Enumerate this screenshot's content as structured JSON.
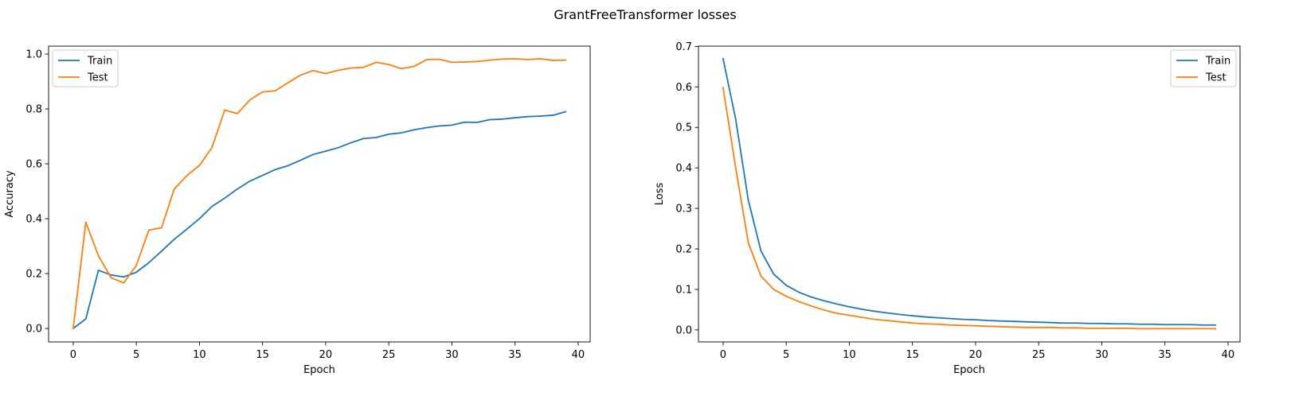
{
  "figure": {
    "title": "GrantFreeTransformer losses"
  },
  "series_colors": {
    "Train": "#1f77b4",
    "Test": "#ff7f0e"
  },
  "chart_data": [
    {
      "type": "line",
      "title": "",
      "xlabel": "Epoch",
      "ylabel": "Accuracy",
      "xlim": [
        -1.95,
        40.95
      ],
      "ylim": [
        -0.049,
        1.029
      ],
      "xticks": [
        0,
        5,
        10,
        15,
        20,
        25,
        30,
        35,
        40
      ],
      "yticks": [
        0.0,
        0.2,
        0.4,
        0.6,
        0.8,
        1.0
      ],
      "ytick_labels": [
        "0.0",
        "0.2",
        "0.4",
        "0.6",
        "0.8",
        "1.0"
      ],
      "grid": false,
      "legend_position": "upper-left",
      "x": [
        0,
        1,
        2,
        3,
        4,
        5,
        6,
        7,
        8,
        9,
        10,
        11,
        12,
        13,
        14,
        15,
        16,
        17,
        18,
        19,
        20,
        21,
        22,
        23,
        24,
        25,
        26,
        27,
        28,
        29,
        30,
        31,
        32,
        33,
        34,
        35,
        36,
        37,
        38,
        39
      ],
      "series": [
        {
          "name": "Train",
          "color": "#1f77b4",
          "values": [
            0.0,
            0.035,
            0.212,
            0.195,
            0.188,
            0.205,
            0.24,
            0.282,
            0.325,
            0.362,
            0.4,
            0.445,
            0.475,
            0.508,
            0.537,
            0.558,
            0.579,
            0.593,
            0.613,
            0.634,
            0.646,
            0.659,
            0.677,
            0.692,
            0.696,
            0.708,
            0.713,
            0.724,
            0.732,
            0.738,
            0.741,
            0.752,
            0.751,
            0.761,
            0.763,
            0.768,
            0.772,
            0.774,
            0.777,
            0.79
          ]
        },
        {
          "name": "Test",
          "color": "#ff7f0e",
          "values": [
            0.0,
            0.387,
            0.265,
            0.185,
            0.166,
            0.23,
            0.359,
            0.367,
            0.508,
            0.557,
            0.594,
            0.66,
            0.796,
            0.783,
            0.833,
            0.862,
            0.866,
            0.895,
            0.923,
            0.94,
            0.929,
            0.941,
            0.949,
            0.952,
            0.97,
            0.962,
            0.947,
            0.955,
            0.98,
            0.981,
            0.97,
            0.971,
            0.973,
            0.978,
            0.982,
            0.983,
            0.98,
            0.983,
            0.977,
            0.978
          ]
        }
      ]
    },
    {
      "type": "line",
      "title": "",
      "xlabel": "Epoch",
      "ylabel": "Loss",
      "xlim": [
        -1.95,
        40.95
      ],
      "ylim": [
        -0.0297,
        0.7007
      ],
      "xticks": [
        0,
        5,
        10,
        15,
        20,
        25,
        30,
        35,
        40
      ],
      "yticks": [
        0.0,
        0.1,
        0.2,
        0.3,
        0.4,
        0.5,
        0.6,
        0.7
      ],
      "ytick_labels": [
        "0.0",
        "0.1",
        "0.2",
        "0.3",
        "0.4",
        "0.5",
        "0.6",
        "0.7"
      ],
      "grid": false,
      "legend_position": "upper-right",
      "x": [
        0,
        1,
        2,
        3,
        4,
        5,
        6,
        7,
        8,
        9,
        10,
        11,
        12,
        13,
        14,
        15,
        16,
        17,
        18,
        19,
        20,
        21,
        22,
        23,
        24,
        25,
        26,
        27,
        28,
        29,
        30,
        31,
        32,
        33,
        34,
        35,
        36,
        37,
        38,
        39
      ],
      "series": [
        {
          "name": "Train",
          "color": "#1f77b4",
          "values": [
            0.67,
            0.52,
            0.32,
            0.195,
            0.138,
            0.11,
            0.093,
            0.081,
            0.072,
            0.064,
            0.057,
            0.051,
            0.046,
            0.042,
            0.038,
            0.035,
            0.032,
            0.03,
            0.028,
            0.026,
            0.025,
            0.023,
            0.022,
            0.021,
            0.02,
            0.019,
            0.018,
            0.017,
            0.017,
            0.016,
            0.016,
            0.015,
            0.015,
            0.014,
            0.014,
            0.013,
            0.013,
            0.013,
            0.012,
            0.012
          ]
        },
        {
          "name": "Test",
          "color": "#ff7f0e",
          "values": [
            0.598,
            0.4,
            0.215,
            0.133,
            0.1,
            0.083,
            0.07,
            0.059,
            0.049,
            0.041,
            0.036,
            0.031,
            0.026,
            0.023,
            0.02,
            0.017,
            0.015,
            0.014,
            0.012,
            0.011,
            0.01,
            0.009,
            0.008,
            0.007,
            0.006,
            0.006,
            0.006,
            0.005,
            0.005,
            0.004,
            0.004,
            0.004,
            0.004,
            0.003,
            0.003,
            0.003,
            0.003,
            0.003,
            0.003,
            0.003
          ]
        }
      ]
    }
  ]
}
